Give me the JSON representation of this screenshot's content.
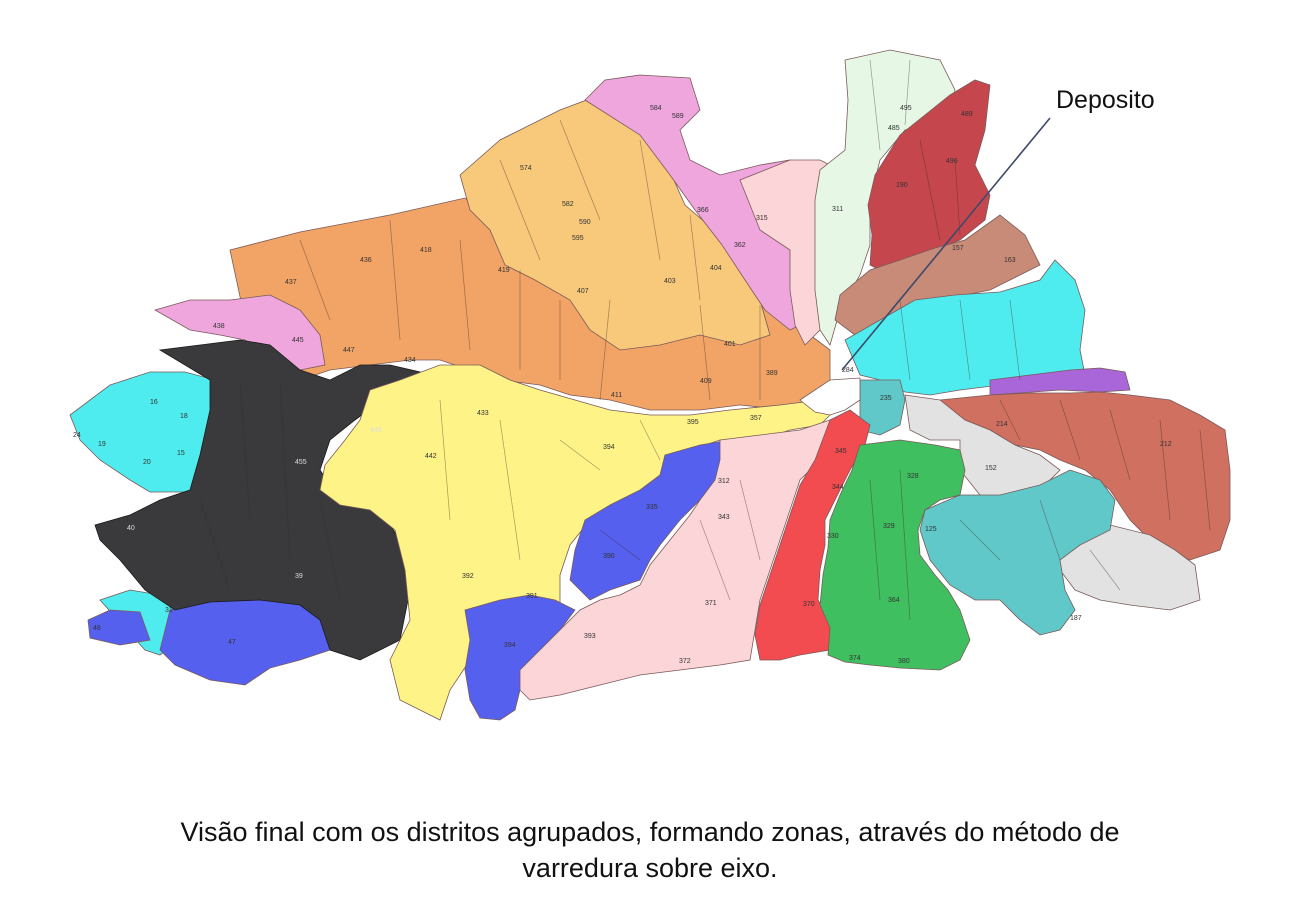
{
  "callout": {
    "label": "Deposito"
  },
  "caption": {
    "line1": "Visão final com  os distritos agrupados, formando zonas, através do método de",
    "line2": "varredura sobre eixo."
  },
  "colors": {
    "black": "#3a3a3c",
    "cyan": "#4fecef",
    "blue": "#5560ee",
    "yellow": "#fef386",
    "orange": "#f2a466",
    "pink": "#eea6dd",
    "gold": "#f8c97a",
    "lightpink": "#fbd5d8",
    "red": "#f24b50",
    "green": "#3fbf5f",
    "lightgreen": "#e6f7e6",
    "darkred": "#c5474d",
    "brown": "#c88b78",
    "rust": "#d07060",
    "teal": "#60c8c8",
    "lightgray": "#e2e2e2",
    "purple": "#a866d8"
  },
  "district_labels": [
    {
      "t": "24",
      "zone": "cyan"
    },
    {
      "t": "16",
      "zone": "cyan"
    },
    {
      "t": "18",
      "zone": "cyan"
    },
    {
      "t": "19",
      "zone": "cyan"
    },
    {
      "t": "20",
      "zone": "cyan"
    },
    {
      "t": "15",
      "zone": "cyan"
    },
    {
      "t": "31",
      "zone": "cyan"
    },
    {
      "t": "48",
      "zone": "blue"
    },
    {
      "t": "47",
      "zone": "blue"
    },
    {
      "t": "40",
      "zone": "black"
    },
    {
      "t": "39",
      "zone": "black"
    },
    {
      "t": "445",
      "zone": "black"
    },
    {
      "t": "455",
      "zone": "black"
    },
    {
      "t": "438",
      "zone": "pink"
    },
    {
      "t": "445",
      "zone": "pink"
    },
    {
      "t": "437",
      "zone": "orange"
    },
    {
      "t": "436",
      "zone": "orange"
    },
    {
      "t": "418",
      "zone": "orange"
    },
    {
      "t": "419",
      "zone": "orange"
    },
    {
      "t": "447",
      "zone": "orange"
    },
    {
      "t": "434",
      "zone": "orange"
    },
    {
      "t": "407",
      "zone": "orange"
    },
    {
      "t": "401",
      "zone": "orange"
    },
    {
      "t": "409",
      "zone": "orange"
    },
    {
      "t": "389",
      "zone": "orange"
    },
    {
      "t": "442",
      "zone": "yellow"
    },
    {
      "t": "433",
      "zone": "yellow"
    },
    {
      "t": "394",
      "zone": "yellow"
    },
    {
      "t": "392",
      "zone": "yellow"
    },
    {
      "t": "411",
      "zone": "yellow"
    },
    {
      "t": "395",
      "zone": "yellow"
    },
    {
      "t": "357",
      "zone": "yellow"
    },
    {
      "t": "574",
      "zone": "gold"
    },
    {
      "t": "582",
      "zone": "gold"
    },
    {
      "t": "590",
      "zone": "gold"
    },
    {
      "t": "595",
      "zone": "gold"
    },
    {
      "t": "403",
      "zone": "gold"
    },
    {
      "t": "404",
      "zone": "gold"
    },
    {
      "t": "584",
      "zone": "pink"
    },
    {
      "t": "589",
      "zone": "pink"
    },
    {
      "t": "366",
      "zone": "pink"
    },
    {
      "t": "362",
      "zone": "pink"
    },
    {
      "t": "315",
      "zone": "pink"
    },
    {
      "t": "335",
      "zone": "blue"
    },
    {
      "t": "390",
      "zone": "blue"
    },
    {
      "t": "391",
      "zone": "blue"
    },
    {
      "t": "394",
      "zone": "blue"
    },
    {
      "t": "312",
      "zone": "blue"
    },
    {
      "t": "343",
      "zone": "lightpink"
    },
    {
      "t": "371",
      "zone": "lightpink"
    },
    {
      "t": "372",
      "zone": "lightpink"
    },
    {
      "t": "393",
      "zone": "lightpink"
    },
    {
      "t": "345",
      "zone": "red"
    },
    {
      "t": "344",
      "zone": "red"
    },
    {
      "t": "330",
      "zone": "red"
    },
    {
      "t": "370",
      "zone": "red"
    },
    {
      "t": "328",
      "zone": "green"
    },
    {
      "t": "329",
      "zone": "green"
    },
    {
      "t": "364",
      "zone": "green"
    },
    {
      "t": "380",
      "zone": "green"
    },
    {
      "t": "374",
      "zone": "green"
    },
    {
      "t": "495",
      "zone": "lightgreen"
    },
    {
      "t": "485",
      "zone": "lightgreen"
    },
    {
      "t": "311",
      "zone": "lightgreen"
    },
    {
      "t": "489",
      "zone": "darkred"
    },
    {
      "t": "496",
      "zone": "darkred"
    },
    {
      "t": "190",
      "zone": "darkred"
    },
    {
      "t": "157",
      "zone": "brown"
    },
    {
      "t": "163",
      "zone": "brown"
    },
    {
      "t": "284",
      "zone": "white"
    },
    {
      "t": "235",
      "zone": "teal"
    },
    {
      "t": "125",
      "zone": "teal"
    },
    {
      "t": "187",
      "zone": "teal"
    },
    {
      "t": "214",
      "zone": "lightgray"
    },
    {
      "t": "152",
      "zone": "lightgray"
    },
    {
      "t": "212",
      "zone": "rust"
    }
  ]
}
